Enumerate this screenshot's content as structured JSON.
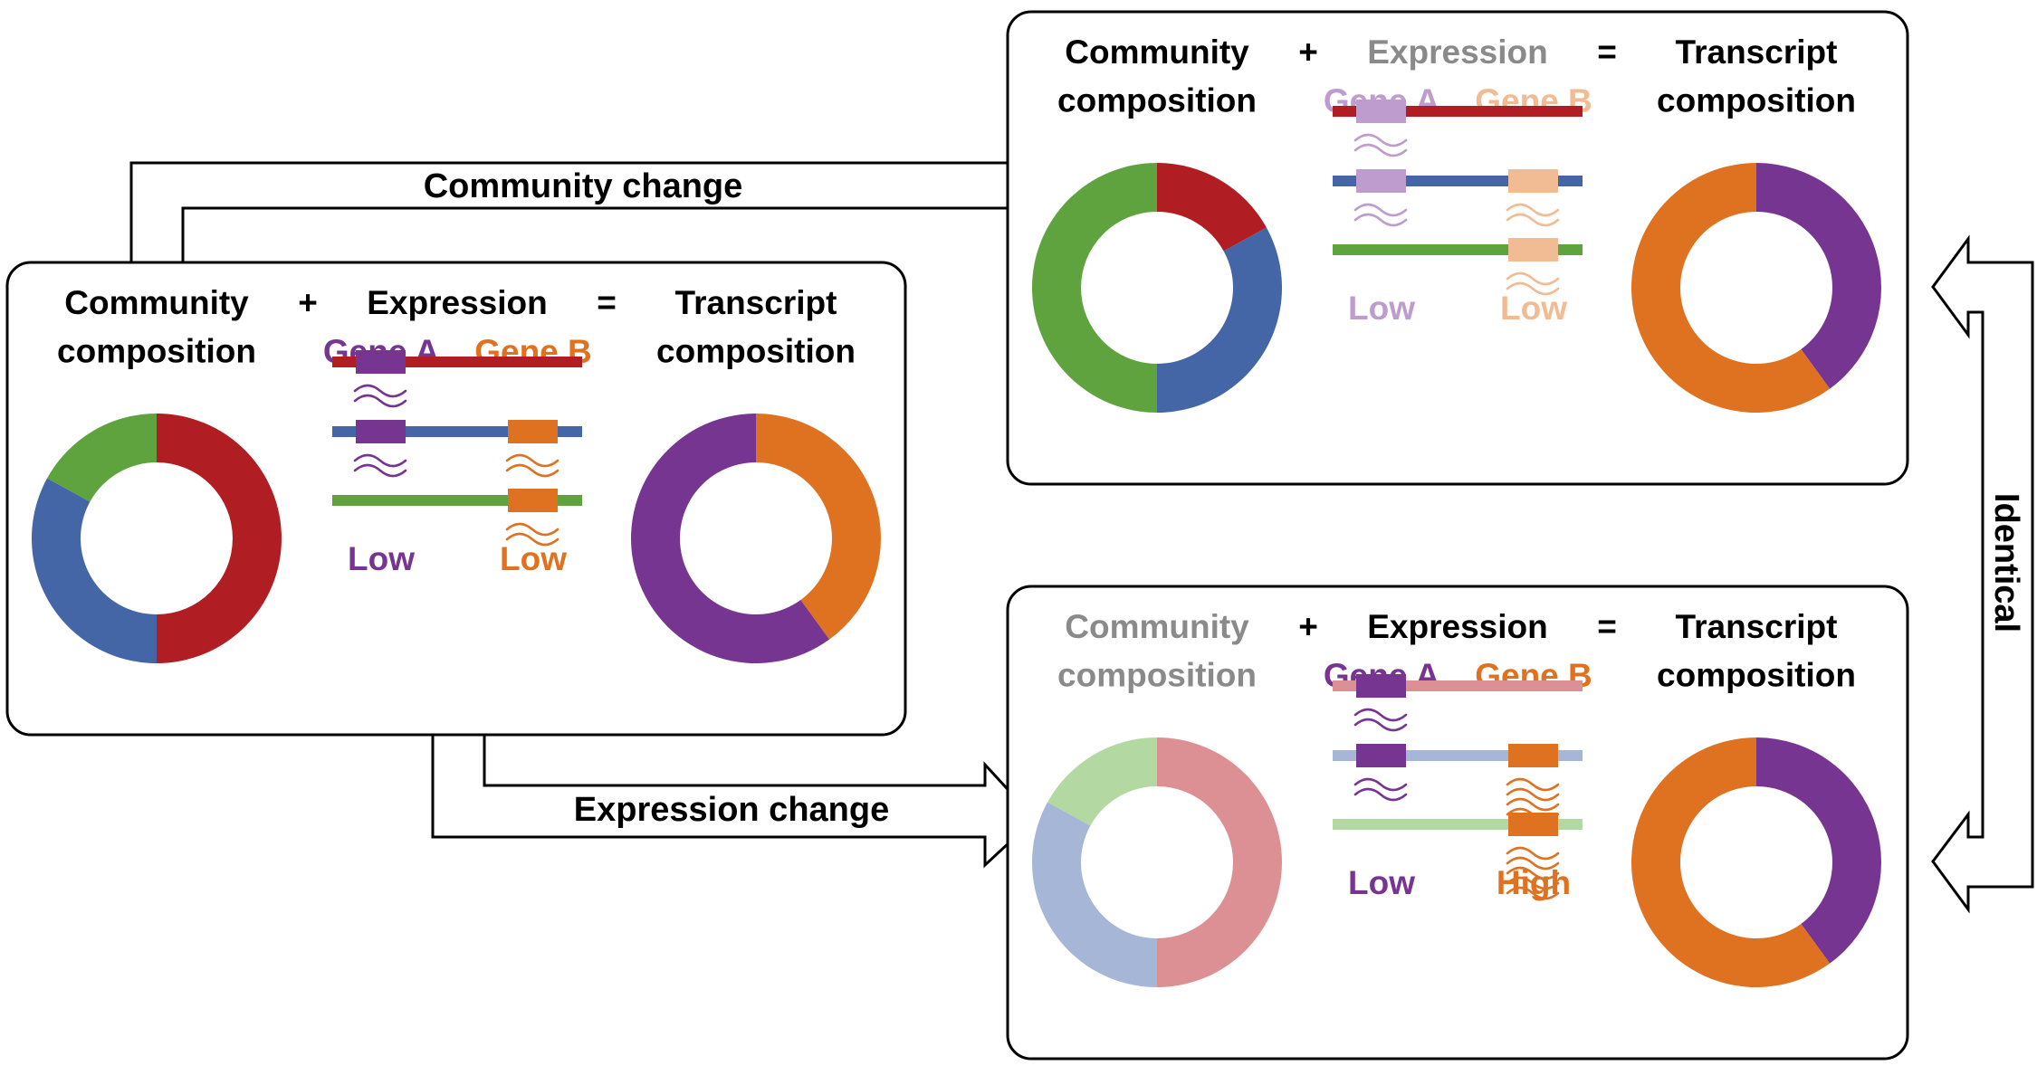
{
  "colors": {
    "red": "#B01E24",
    "blue": "#4466A6",
    "green": "#5FA33E",
    "purple": "#773592",
    "orange": "#DF7221",
    "light_red": "#DC9094",
    "light_blue": "#A6B6D6",
    "light_green": "#B4D8A2",
    "light_purple": "#BE9CCD",
    "light_orange": "#F1BB94",
    "grey": "#8A8A8A",
    "black": "#000000"
  },
  "panels": {
    "left": {
      "community_label": "Community\ncomposition",
      "plus": "+",
      "expression_label": "Expression",
      "equals": "=",
      "transcript_label": "Transcript\ncomposition",
      "gene_a": "Gene A",
      "gene_b": "Gene B",
      "gene_a_level": "Low",
      "gene_b_level": "Low",
      "community_shares": {
        "red": 0.5,
        "blue": 0.33,
        "green": 0.17
      },
      "transcript_shares": {
        "purple": 0.6,
        "orange": 0.4
      }
    },
    "top_right": {
      "community_label": "Community\ncomposition",
      "plus": "+",
      "expression_label": "Expression",
      "equals": "=",
      "transcript_label": "Transcript\ncomposition",
      "gene_a": "Gene A",
      "gene_b": "Gene B",
      "gene_a_level": "Low",
      "gene_b_level": "Low",
      "community_shares": {
        "red": 0.17,
        "blue": 0.33,
        "green": 0.5
      },
      "transcript_shares": {
        "purple": 0.4,
        "orange": 0.6
      }
    },
    "bottom_right": {
      "community_label": "Community\ncomposition",
      "plus": "+",
      "expression_label": "Expression",
      "equals": "=",
      "transcript_label": "Transcript\ncomposition",
      "gene_a": "Gene A",
      "gene_b": "Gene B",
      "gene_a_level": "Low",
      "gene_b_level": "High",
      "community_shares": {
        "red": 0.5,
        "blue": 0.33,
        "green": 0.17
      },
      "transcript_shares": {
        "purple": 0.4,
        "orange": 0.6
      }
    }
  },
  "arrows": {
    "community_change": "Community change",
    "expression_change": "Expression change",
    "identical": "Identical"
  }
}
